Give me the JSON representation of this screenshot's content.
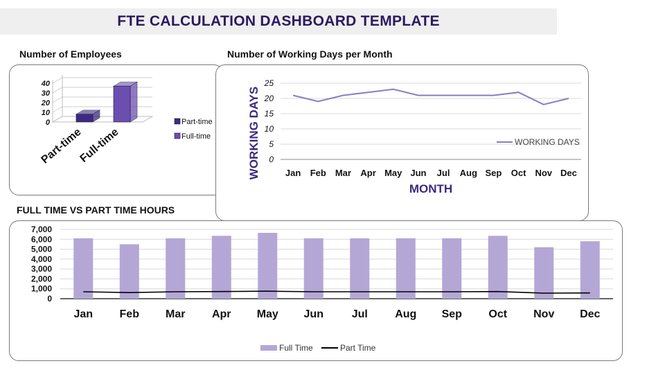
{
  "page_title": "FTE CALCULATION DASHBOARD TEMPLATE",
  "colors": {
    "title_text": "#2a1a5e",
    "dark_purple": "#3d2a80",
    "mid_purple": "#6b4fb0",
    "line_purple": "#8a7cc2",
    "bar_lavender": "#b4a7d6",
    "axis_title_purple": "#3c2a7c",
    "part_time_line": "#000000"
  },
  "chart_data": [
    {
      "id": "employees",
      "type": "bar",
      "title": "Number of Employees",
      "categories": [
        "Part-time",
        "Full-time"
      ],
      "series": [
        {
          "values": [
            8,
            37
          ]
        }
      ],
      "legend": [
        "Part-time",
        "Full-time"
      ],
      "legend_position": "right",
      "y_ticks": [
        "40",
        "30",
        "20",
        "10",
        "0"
      ],
      "ylim": [
        0,
        40
      ],
      "three_d": true,
      "grid": true
    },
    {
      "id": "working_days",
      "type": "line",
      "title": "Number of Working Days per Month",
      "categories": [
        "Jan",
        "Feb",
        "Mar",
        "Apr",
        "May",
        "Jun",
        "Jul",
        "Aug",
        "Sep",
        "Oct",
        "Nov",
        "Dec"
      ],
      "series": [
        {
          "name": "WORKING DAYS",
          "values": [
            21,
            19,
            21,
            22,
            23,
            21,
            21,
            21,
            21,
            22,
            18,
            20
          ]
        }
      ],
      "xlabel": "MONTH",
      "ylabel": "WORKING DAYS",
      "y_ticks": [
        "25",
        "20",
        "15",
        "10",
        "5",
        "0"
      ],
      "ylim": [
        0,
        25
      ],
      "legend_position": "inside-bottom-right",
      "grid": true
    },
    {
      "id": "ft_vs_pt",
      "type": "bar",
      "title": "FULL TIME VS PART TIME HOURS",
      "categories": [
        "Jan",
        "Feb",
        "Mar",
        "Apr",
        "May",
        "Jun",
        "Jul",
        "Aug",
        "Sep",
        "Oct",
        "Nov",
        "Dec"
      ],
      "series": [
        {
          "name": "Full Time",
          "type": "bar",
          "values": [
            6100,
            5500,
            6100,
            6350,
            6650,
            6100,
            6100,
            6100,
            6100,
            6350,
            5200,
            5800
          ]
        },
        {
          "name": "Part Time",
          "type": "line",
          "values": [
            700,
            620,
            700,
            720,
            760,
            700,
            700,
            700,
            700,
            720,
            560,
            580
          ]
        }
      ],
      "y_ticks": [
        "7,000",
        "6,000",
        "5,000",
        "4,000",
        "3,000",
        "2,000",
        "1,000",
        "0"
      ],
      "ylim": [
        0,
        7000
      ],
      "legend_position": "bottom",
      "grid": true
    }
  ]
}
